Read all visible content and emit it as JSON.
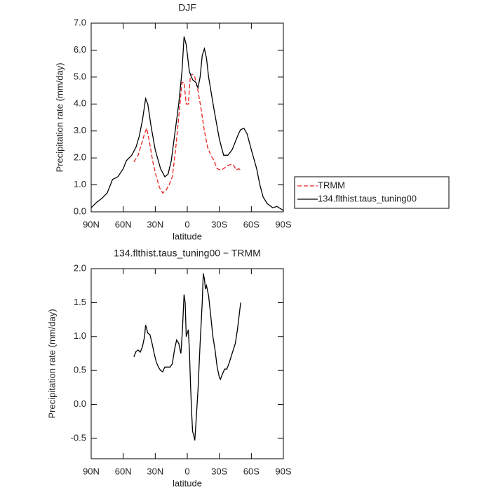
{
  "chart_data": [
    {
      "type": "line",
      "title": "DJF",
      "xlabel": "latitude",
      "ylabel": "Precipitation rate (mm/day)",
      "xlim": [
        90,
        -90
      ],
      "xticks": [
        {
          "value": 90,
          "label": "90N"
        },
        {
          "value": 60,
          "label": "60N"
        },
        {
          "value": 30,
          "label": "30N"
        },
        0,
        {
          "value": -30,
          "label": "30S"
        },
        {
          "value": -60,
          "label": "60S"
        },
        {
          "value": -90,
          "label": "90S"
        }
      ],
      "ylim": [
        0,
        7
      ],
      "yticks": [
        {
          "value": 0,
          "label": "0.0"
        },
        {
          "value": 1,
          "label": "1.0"
        },
        {
          "value": 2,
          "label": "2.0"
        },
        {
          "value": 3,
          "label": "3.0"
        },
        {
          "value": 4,
          "label": "4.0"
        },
        {
          "value": 5,
          "label": "5.0"
        },
        {
          "value": 6,
          "label": "6.0"
        },
        {
          "value": 7,
          "label": "7.0"
        }
      ],
      "legend": "outside-right",
      "series": [
        {
          "name": "TRMM",
          "color": "#e8231f",
          "dashed": true,
          "x": [
            50,
            46,
            43,
            40,
            38,
            35,
            32,
            29,
            26,
            23,
            20,
            17,
            14,
            11,
            8,
            5,
            3,
            1,
            -1,
            -3,
            -5,
            -7,
            -10,
            -13,
            -16,
            -19,
            -22,
            -25,
            -28,
            -31,
            -34,
            -37,
            -40,
            -43,
            -46,
            -48,
            -50
          ],
          "values": [
            1.85,
            2.1,
            2.5,
            2.9,
            3.1,
            2.5,
            1.8,
            1.3,
            0.9,
            0.7,
            0.8,
            1.0,
            1.3,
            2.3,
            3.5,
            4.8,
            4.8,
            4.0,
            4.0,
            5.1,
            5.1,
            5.0,
            4.5,
            3.8,
            3.0,
            2.4,
            2.1,
            1.9,
            1.6,
            1.55,
            1.6,
            1.7,
            1.75,
            1.75,
            1.55,
            1.6,
            1.55
          ]
        },
        {
          "name": "134.flthist.taus_tuning00",
          "color": "#000000",
          "dashed": false,
          "x": [
            90,
            85,
            80,
            75,
            72,
            70,
            65,
            60,
            57,
            52,
            48,
            45,
            42,
            39,
            37,
            34,
            30,
            25,
            21,
            18,
            15,
            12,
            8,
            5,
            3,
            1,
            -2,
            -5,
            -8,
            -10,
            -12,
            -14,
            -16,
            -18,
            -20,
            -25,
            -30,
            -34,
            -38,
            -42,
            -45,
            -48,
            -50,
            -53,
            -56,
            -60,
            -65,
            -68,
            -71,
            -75,
            -80,
            -84,
            -88,
            -90
          ],
          "values": [
            0.15,
            0.35,
            0.5,
            0.7,
            1.0,
            1.2,
            1.3,
            1.6,
            1.9,
            2.1,
            2.4,
            2.8,
            3.4,
            4.2,
            4.0,
            3.2,
            2.3,
            1.6,
            1.3,
            1.4,
            1.9,
            2.8,
            4.0,
            5.2,
            6.5,
            6.2,
            5.2,
            4.9,
            4.8,
            4.6,
            5.0,
            5.8,
            6.05,
            5.7,
            5.0,
            3.8,
            2.7,
            2.1,
            2.1,
            2.3,
            2.6,
            2.9,
            3.05,
            3.1,
            2.9,
            2.3,
            1.6,
            1.0,
            0.55,
            0.3,
            0.15,
            0.2,
            0.1,
            0.05
          ]
        }
      ]
    },
    {
      "type": "line",
      "title": "134.flthist.taus_tuning00 − TRMM",
      "xlabel": "latitude",
      "ylabel": "Precipitation rate (mm/day)",
      "xlim": [
        90,
        -90
      ],
      "xticks": [
        {
          "value": 90,
          "label": "90N"
        },
        {
          "value": 60,
          "label": "60N"
        },
        {
          "value": 30,
          "label": "30N"
        },
        0,
        {
          "value": -30,
          "label": "30S"
        },
        {
          "value": -60,
          "label": "60S"
        },
        {
          "value": -90,
          "label": "90S"
        }
      ],
      "ylim": [
        -0.8,
        2.0
      ],
      "yticks": [
        -0.5,
        {
          "value": 0,
          "label": "0.0"
        },
        0.5,
        {
          "value": 1,
          "label": "1.0"
        },
        1.5,
        {
          "value": 2,
          "label": "2.0"
        }
      ],
      "series": [
        {
          "color": "#000000",
          "dashed": false,
          "x": [
            50,
            48,
            46,
            44,
            42,
            40,
            39,
            37,
            35,
            33,
            31,
            29,
            27,
            25,
            23,
            21,
            19,
            16,
            14,
            12,
            10,
            8,
            6,
            4.5,
            3,
            2,
            1,
            0,
            -1,
            -2,
            -3,
            -4,
            -5,
            -6,
            -7,
            -8,
            -10,
            -12,
            -14,
            -15,
            -16,
            -17,
            -18,
            -20,
            -22,
            -24,
            -26,
            -28,
            -30,
            -31,
            -33,
            -35,
            -37,
            -39,
            -41,
            -43,
            -45,
            -47,
            -50
          ],
          "values": [
            0.7,
            0.78,
            0.8,
            0.77,
            0.85,
            1.0,
            1.17,
            1.05,
            1.03,
            0.9,
            0.75,
            0.62,
            0.55,
            0.5,
            0.48,
            0.55,
            0.55,
            0.55,
            0.6,
            0.8,
            0.95,
            0.9,
            0.75,
            1.1,
            1.62,
            1.5,
            1.0,
            1.05,
            1.1,
            0.8,
            0.3,
            -0.1,
            -0.4,
            -0.45,
            -0.53,
            -0.3,
            0.2,
            0.9,
            1.5,
            1.93,
            1.85,
            1.7,
            1.75,
            1.6,
            1.3,
            1.0,
            0.8,
            0.55,
            0.4,
            0.37,
            0.45,
            0.52,
            0.52,
            0.6,
            0.7,
            0.8,
            0.9,
            1.1,
            1.5
          ]
        }
      ]
    }
  ]
}
